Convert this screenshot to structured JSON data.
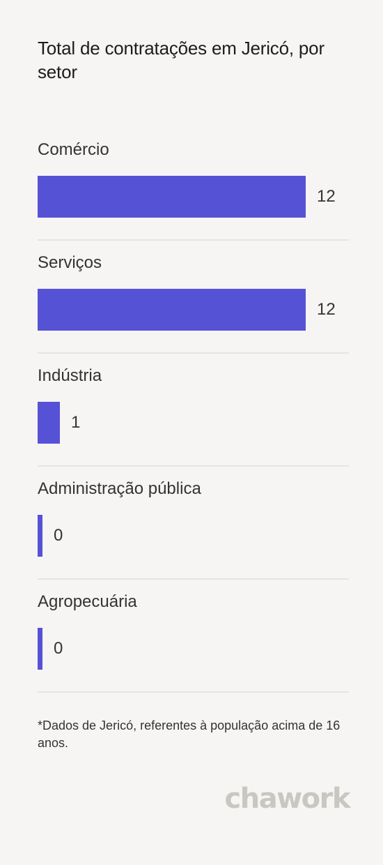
{
  "title": "Total de contratações em Jericó, por setor",
  "footnote": "*Dados de Jericó, referentes à população acima de 16 anos.",
  "brand": "chawork",
  "colors": {
    "bar": "#5652d6",
    "background": "#f6f5f3",
    "divider": "#e5e4e1",
    "brand": "#c9c7c2"
  },
  "chart_data": {
    "type": "bar",
    "orientation": "horizontal",
    "categories": [
      "Comércio",
      "Serviços",
      "Indústria",
      "Administração pública",
      "Agropecuária"
    ],
    "values": [
      12,
      12,
      1,
      0,
      0
    ],
    "title": "Total de contratações em Jericó, por setor",
    "xlim": [
      0,
      12
    ],
    "grid": false,
    "legend": "none"
  }
}
